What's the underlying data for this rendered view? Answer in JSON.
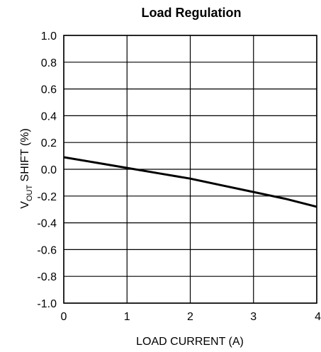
{
  "chart_data": {
    "type": "line",
    "title": "Load Regulation",
    "xlabel": "LOAD CURRENT (A)",
    "ylabel": {
      "main": "V",
      "sub": "OUT",
      "rest": " SHIFT (%)"
    },
    "xlim": [
      0,
      4
    ],
    "ylim": [
      -1.0,
      1.0
    ],
    "xticks": [
      "0",
      "1",
      "2",
      "3",
      "4"
    ],
    "yticks": [
      "1.0",
      "0.8",
      "0.6",
      "0.4",
      "0.2",
      "0.0",
      "-0.2",
      "-0.4",
      "-0.6",
      "-0.8",
      "-1.0"
    ],
    "grid": true,
    "series": [
      {
        "x": [
          0,
          0.5,
          1,
          1.5,
          2,
          2.5,
          3,
          3.5,
          4
        ],
        "y": [
          0.09,
          0.05,
          0.01,
          -0.03,
          -0.07,
          -0.12,
          -0.17,
          -0.22,
          -0.28
        ]
      }
    ]
  }
}
